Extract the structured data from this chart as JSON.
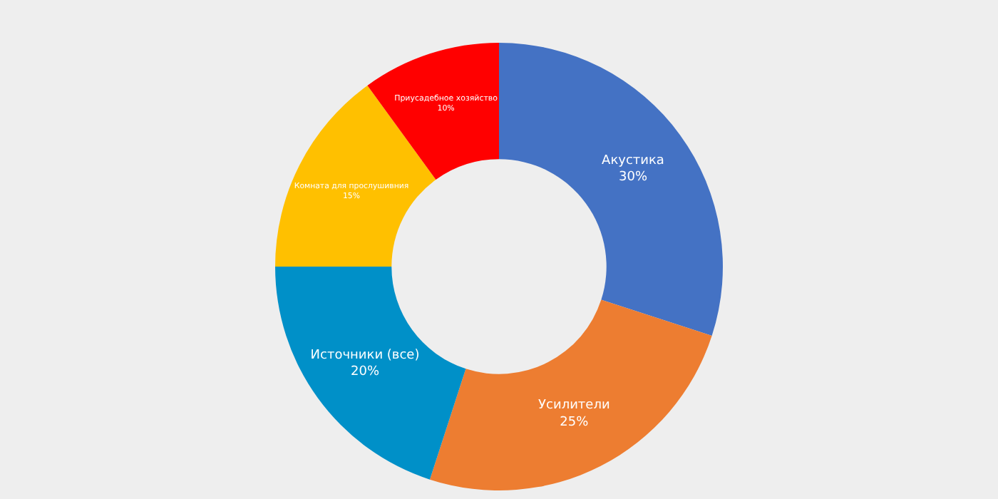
{
  "chart_data": {
    "type": "donut",
    "categories": [
      "Акустика",
      "Усилители",
      "Источники (все)",
      "Комната для прослушивния",
      "Приусадебное хозяйство"
    ],
    "values": [
      30,
      25,
      20,
      15,
      10
    ],
    "value_labels": [
      "30%",
      "25%",
      "20%",
      "15%",
      "10%"
    ],
    "colors": [
      "#4472c4",
      "#ed7d31",
      "#0090c8",
      "#ffc000",
      "#ff0000"
    ],
    "legend": false
  }
}
